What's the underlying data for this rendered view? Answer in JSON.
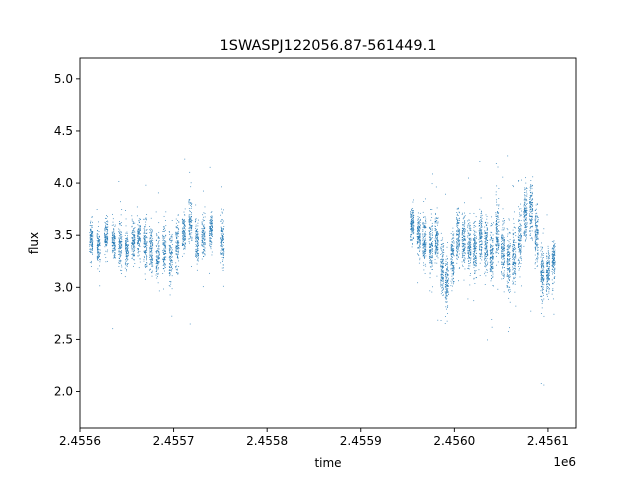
{
  "chart_data": {
    "type": "scatter",
    "title": "1SWASPJ122056.87-561449.1",
    "xlabel": "time",
    "ylabel": "flux",
    "x_offset_label": "1e6",
    "xlim": [
      2.4556,
      2.45613
    ],
    "ylim": [
      1.65,
      5.2
    ],
    "x_ticks": [
      2.4556,
      2.4557,
      2.4558,
      2.4559,
      2.456,
      2.4561
    ],
    "x_tick_labels": [
      "2.4556",
      "2.4557",
      "2.4558",
      "2.4559",
      "2.4560",
      "2.4561"
    ],
    "y_ticks": [
      2.0,
      2.5,
      3.0,
      3.5,
      4.0,
      4.5,
      5.0
    ],
    "y_tick_labels": [
      "2.0",
      "2.5",
      "3.0",
      "3.5",
      "4.0",
      "4.5",
      "5.0"
    ],
    "grid": false,
    "marker_color": "#1f77b4",
    "nights_season1": [
      [
        2.455612,
        3.45,
        0.22
      ],
      [
        2.45562,
        3.4,
        0.2
      ],
      [
        2.455628,
        3.5,
        0.21
      ],
      [
        2.455636,
        3.45,
        0.22
      ],
      [
        2.455643,
        3.4,
        0.25
      ],
      [
        2.45565,
        3.35,
        0.2
      ],
      [
        2.455657,
        3.45,
        0.22
      ],
      [
        2.455663,
        3.5,
        0.24
      ],
      [
        2.45567,
        3.4,
        0.3
      ],
      [
        2.455676,
        3.35,
        0.25
      ],
      [
        2.455683,
        3.3,
        0.26
      ],
      [
        2.45569,
        3.35,
        0.3
      ],
      [
        2.455697,
        3.3,
        0.32
      ],
      [
        2.455704,
        3.4,
        0.28
      ],
      [
        2.455711,
        3.55,
        0.25
      ],
      [
        2.455718,
        3.6,
        0.26
      ],
      [
        2.455725,
        3.45,
        0.3
      ],
      [
        2.455732,
        3.5,
        0.25
      ],
      [
        2.45574,
        3.55,
        0.22
      ],
      [
        2.455752,
        3.45,
        0.28
      ]
    ],
    "nights_season2": [
      [
        2.455955,
        3.6,
        0.2
      ],
      [
        2.455962,
        3.5,
        0.22
      ],
      [
        2.455968,
        3.45,
        0.25
      ],
      [
        2.455975,
        3.4,
        0.3
      ],
      [
        2.455981,
        3.45,
        0.28
      ],
      [
        2.455987,
        3.2,
        0.3
      ],
      [
        2.455992,
        3.05,
        0.32
      ],
      [
        2.455998,
        3.3,
        0.3
      ],
      [
        2.456004,
        3.5,
        0.3
      ],
      [
        2.45601,
        3.45,
        0.28
      ],
      [
        2.456016,
        3.4,
        0.3
      ],
      [
        2.456022,
        3.35,
        0.3
      ],
      [
        2.456028,
        3.5,
        0.28
      ],
      [
        2.456034,
        3.4,
        0.3
      ],
      [
        2.45604,
        3.3,
        0.3
      ],
      [
        2.456046,
        3.55,
        0.35
      ],
      [
        2.456052,
        3.35,
        0.35
      ],
      [
        2.456058,
        3.25,
        0.35
      ],
      [
        2.456064,
        3.3,
        0.32
      ],
      [
        2.45607,
        3.45,
        0.3
      ],
      [
        2.456076,
        3.7,
        0.3
      ],
      [
        2.456082,
        3.75,
        0.32
      ],
      [
        2.456088,
        3.5,
        0.3
      ],
      [
        2.456094,
        3.1,
        0.3
      ],
      [
        2.4561,
        3.15,
        0.25
      ],
      [
        2.456106,
        3.25,
        0.22
      ]
    ]
  }
}
